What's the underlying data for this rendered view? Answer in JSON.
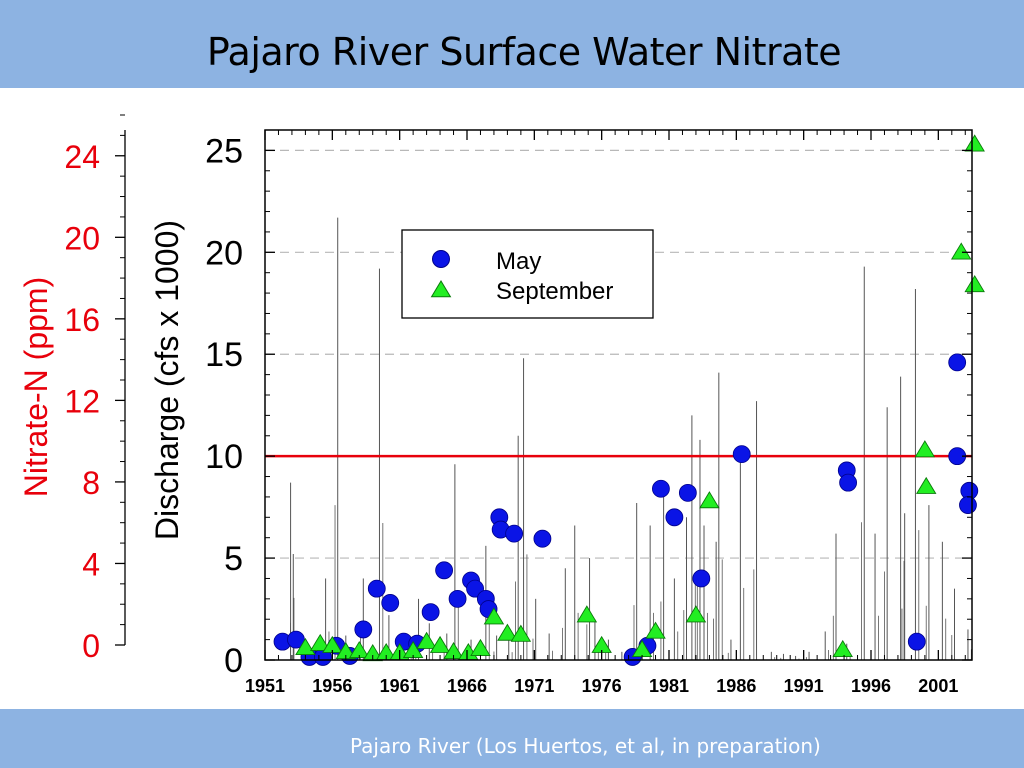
{
  "slide": {
    "title": "Pajaro River Surface Water Nitrate",
    "footer": "Pajaro River (Los Huertos, et al, in preparation)"
  },
  "colors": {
    "band": "#8db3e2",
    "nitrate_axis": "#e8000b",
    "threshold_line": "#e8000b",
    "may": "#0a14e6",
    "september": "#22ee22",
    "discharge": "#555555",
    "grid": "#b8b8b8"
  },
  "chart_data": {
    "type": "scatter",
    "title": "",
    "xlabel": "",
    "xlim": [
      1951,
      2003.5
    ],
    "x_ticks": [
      "1951",
      "1956",
      "1961",
      "1966",
      "1971",
      "1976",
      "1981",
      "1986",
      "1991",
      "1996",
      "2001"
    ],
    "y_left": {
      "label": "Nitrate-N (ppm)",
      "ticks": [
        "0",
        "4",
        "8",
        "12",
        "16",
        "20",
        "24"
      ],
      "ylim": [
        0,
        26
      ]
    },
    "y_right": {
      "label": "Discharge (cfs x 1000)",
      "ticks": [
        "0",
        "5",
        "10",
        "15",
        "20",
        "25"
      ],
      "ylim": [
        0,
        26
      ]
    },
    "grid": "horizontal dashed",
    "legend": {
      "position": "top-center",
      "entries": [
        "May",
        "September"
      ]
    },
    "reference_line": {
      "y": 10
    },
    "series": [
      {
        "name": "May",
        "marker": "circle",
        "points": [
          [
            1952.3,
            0.9
          ],
          [
            1953.3,
            1.0
          ],
          [
            1954.3,
            0.15
          ],
          [
            1955.3,
            0.15
          ],
          [
            1956.3,
            0.7
          ],
          [
            1957.3,
            0.2
          ],
          [
            1958.3,
            1.5
          ],
          [
            1959.3,
            3.5
          ],
          [
            1960.3,
            2.8
          ],
          [
            1961.3,
            0.9
          ],
          [
            1962.3,
            0.8
          ],
          [
            1963.3,
            2.35
          ],
          [
            1964.3,
            4.4
          ],
          [
            1965.3,
            3.0
          ],
          [
            1966.3,
            3.9
          ],
          [
            1966.6,
            3.5
          ],
          [
            1967.4,
            3.0
          ],
          [
            1967.6,
            2.5
          ],
          [
            1968.4,
            7.0
          ],
          [
            1968.5,
            6.4
          ],
          [
            1969.5,
            6.2
          ],
          [
            1971.6,
            5.95
          ],
          [
            1978.3,
            0.15
          ],
          [
            1979.4,
            0.7
          ],
          [
            1980.4,
            8.4
          ],
          [
            1981.4,
            7.0
          ],
          [
            1982.4,
            8.2
          ],
          [
            1983.4,
            4.0
          ],
          [
            1986.4,
            10.1
          ],
          [
            1994.2,
            9.3
          ],
          [
            1994.3,
            8.7
          ],
          [
            1999.4,
            0.9
          ],
          [
            2002.4,
            14.6
          ],
          [
            2002.4,
            10.0
          ],
          [
            2003.3,
            8.3
          ],
          [
            2003.2,
            7.6
          ]
        ]
      },
      {
        "name": "September",
        "marker": "triangle",
        "points": [
          [
            1954.0,
            0.6
          ],
          [
            1955.1,
            0.8
          ],
          [
            1956.0,
            0.7
          ],
          [
            1957.0,
            0.4
          ],
          [
            1958.0,
            0.45
          ],
          [
            1959.0,
            0.3
          ],
          [
            1960.0,
            0.35
          ],
          [
            1961.0,
            0.35
          ],
          [
            1962.0,
            0.45
          ],
          [
            1963.0,
            0.9
          ],
          [
            1964.0,
            0.7
          ],
          [
            1965.0,
            0.4
          ],
          [
            1966.1,
            0.35
          ],
          [
            1967.0,
            0.55
          ],
          [
            1968.0,
            2.1
          ],
          [
            1969.0,
            1.3
          ],
          [
            1970.0,
            1.25
          ],
          [
            1974.9,
            2.2
          ],
          [
            1976.0,
            0.7
          ],
          [
            1979.0,
            0.5
          ],
          [
            1980.0,
            1.4
          ],
          [
            1983.0,
            2.2
          ],
          [
            1984.0,
            7.8
          ],
          [
            1993.9,
            0.5
          ],
          [
            2000.0,
            10.3
          ],
          [
            2000.1,
            8.5
          ],
          [
            2002.7,
            20.0
          ],
          [
            2003.7,
            25.3
          ],
          [
            2003.7,
            18.4
          ]
        ]
      }
    ],
    "discharge_peaks": [
      [
        1952.9,
        8.7
      ],
      [
        1953.1,
        5.2
      ],
      [
        1955.5,
        4.0
      ],
      [
        1956.4,
        21.7
      ],
      [
        1957.0,
        1.2
      ],
      [
        1958.3,
        4.0
      ],
      [
        1959.5,
        19.2
      ],
      [
        1960.2,
        2.2
      ],
      [
        1961.6,
        0.6
      ],
      [
        1962.4,
        3.0
      ],
      [
        1963.2,
        1.8
      ],
      [
        1964.5,
        1.3
      ],
      [
        1965.1,
        9.6
      ],
      [
        1966.3,
        1.0
      ],
      [
        1967.4,
        5.6
      ],
      [
        1968.2,
        1.2
      ],
      [
        1969.1,
        1.1
      ],
      [
        1969.8,
        11.0
      ],
      [
        1970.2,
        14.8
      ],
      [
        1971.1,
        3.0
      ],
      [
        1972.1,
        1.3
      ],
      [
        1973.3,
        4.5
      ],
      [
        1974.0,
        6.6
      ],
      [
        1975.1,
        5.0
      ],
      [
        1975.5,
        2.0
      ],
      [
        1976.5,
        1.0
      ],
      [
        1977.5,
        0.4
      ],
      [
        1978.6,
        7.7
      ],
      [
        1979.6,
        6.6
      ],
      [
        1980.6,
        8.2
      ],
      [
        1981.4,
        4.0
      ],
      [
        1982.3,
        7.0
      ],
      [
        1982.7,
        12.0
      ],
      [
        1983.3,
        10.8
      ],
      [
        1983.6,
        6.6
      ],
      [
        1984.5,
        5.8
      ],
      [
        1984.7,
        14.1
      ],
      [
        1985.6,
        1.0
      ],
      [
        1986.3,
        10.1
      ],
      [
        1987.5,
        12.7
      ],
      [
        1988.6,
        0.4
      ],
      [
        1989.5,
        0.3
      ],
      [
        1990.4,
        0.2
      ],
      [
        1991.4,
        0.4
      ],
      [
        1992.6,
        1.4
      ],
      [
        1993.4,
        6.2
      ],
      [
        1994.2,
        0.8
      ],
      [
        1995.5,
        19.3
      ],
      [
        1996.3,
        6.2
      ],
      [
        1997.2,
        12.4
      ],
      [
        1998.2,
        13.9
      ],
      [
        1998.5,
        7.2
      ],
      [
        1999.3,
        18.2
      ],
      [
        2000.3,
        7.6
      ],
      [
        2001.3,
        5.8
      ],
      [
        2002.2,
        3.5
      ],
      [
        2003.2,
        1.5
      ]
    ]
  }
}
